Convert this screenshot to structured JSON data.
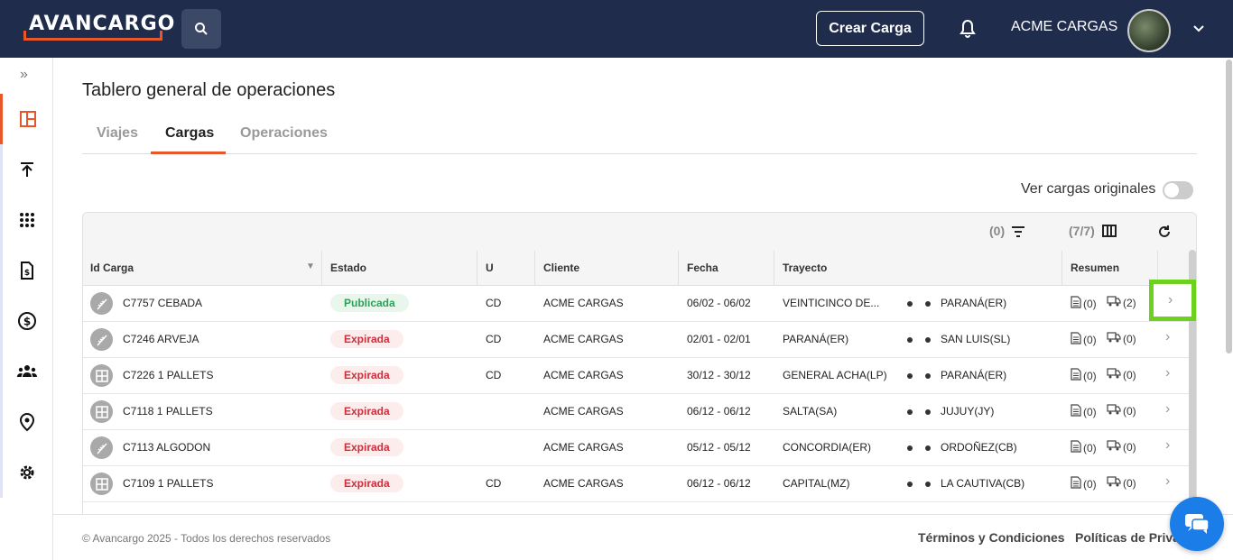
{
  "header": {
    "logo": "AVANCARGO",
    "create_button": "Crear Carga",
    "company": "ACME CARGAS"
  },
  "page": {
    "title": "Tablero general de operaciones",
    "tabs": [
      {
        "label": "Viajes",
        "active": false
      },
      {
        "label": "Cargas",
        "active": true
      },
      {
        "label": "Operaciones",
        "active": false
      }
    ],
    "toggle_label": "Ver cargas originales"
  },
  "table": {
    "filter_count": "(0)",
    "columns_count": "(7/7)",
    "headers": [
      "Id Carga",
      "Estado",
      "U",
      "Cliente",
      "Fecha",
      "Trayecto",
      "Resumen"
    ],
    "rows": [
      {
        "icon": "wheat-icon",
        "id": "C7757 CEBADA",
        "estado": "Publicada",
        "status": "pub",
        "u": "CD",
        "cliente": "ACME CARGAS",
        "fecha": "06/02 - 06/02",
        "origen": "VEINTICINCO DE...",
        "destino": "PARANÁ(ER)",
        "docs": "(0)",
        "trucks": "(2)"
      },
      {
        "icon": "wheat-icon",
        "id": "C7246 ARVEJA",
        "estado": "Expirada",
        "status": "exp",
        "u": "CD",
        "cliente": "ACME CARGAS",
        "fecha": "02/01 - 02/01",
        "origen": "PARANÁ(ER)",
        "destino": "SAN LUIS(SL)",
        "docs": "(0)",
        "trucks": "(0)"
      },
      {
        "icon": "pallet-icon",
        "id": "C7226 1 PALLETS",
        "estado": "Expirada",
        "status": "exp",
        "u": "CD",
        "cliente": "ACME CARGAS",
        "fecha": "30/12 - 30/12",
        "origen": "GENERAL ACHA(LP)",
        "destino": "PARANÁ(ER)",
        "docs": "(0)",
        "trucks": "(0)"
      },
      {
        "icon": "pallet-icon",
        "id": "C7118 1 PALLETS",
        "estado": "Expirada",
        "status": "exp",
        "u": "",
        "cliente": "ACME CARGAS",
        "fecha": "06/12 - 06/12",
        "origen": "SALTA(SA)",
        "destino": "JUJUY(JY)",
        "docs": "(0)",
        "trucks": "(0)"
      },
      {
        "icon": "wheat-icon",
        "id": "C7113 ALGODON",
        "estado": "Expirada",
        "status": "exp",
        "u": "",
        "cliente": "ACME CARGAS",
        "fecha": "05/12 - 05/12",
        "origen": "CONCORDIA(ER)",
        "destino": "ORDOÑEZ(CB)",
        "docs": "(0)",
        "trucks": "(0)"
      },
      {
        "icon": "pallet-icon",
        "id": "C7109 1 PALLETS",
        "estado": "Expirada",
        "status": "exp",
        "u": "CD",
        "cliente": "ACME CARGAS",
        "fecha": "06/12 - 06/12",
        "origen": "CAPITAL(MZ)",
        "destino": "LA CAUTIVA(CB)",
        "docs": "(0)",
        "trucks": "(0)"
      }
    ]
  },
  "footer": {
    "copyright": "© Avancargo 2025 - Todos los derechos reservados",
    "terms": "Términos y Condiciones",
    "privacy": "Políticas de Priva"
  },
  "colors": {
    "navbar": "#1f2c4c",
    "accent": "#e8562a",
    "published": "#2fa05a",
    "expired": "#d22c3b",
    "highlight": "#6ed11e",
    "chat": "#1a7de8"
  }
}
